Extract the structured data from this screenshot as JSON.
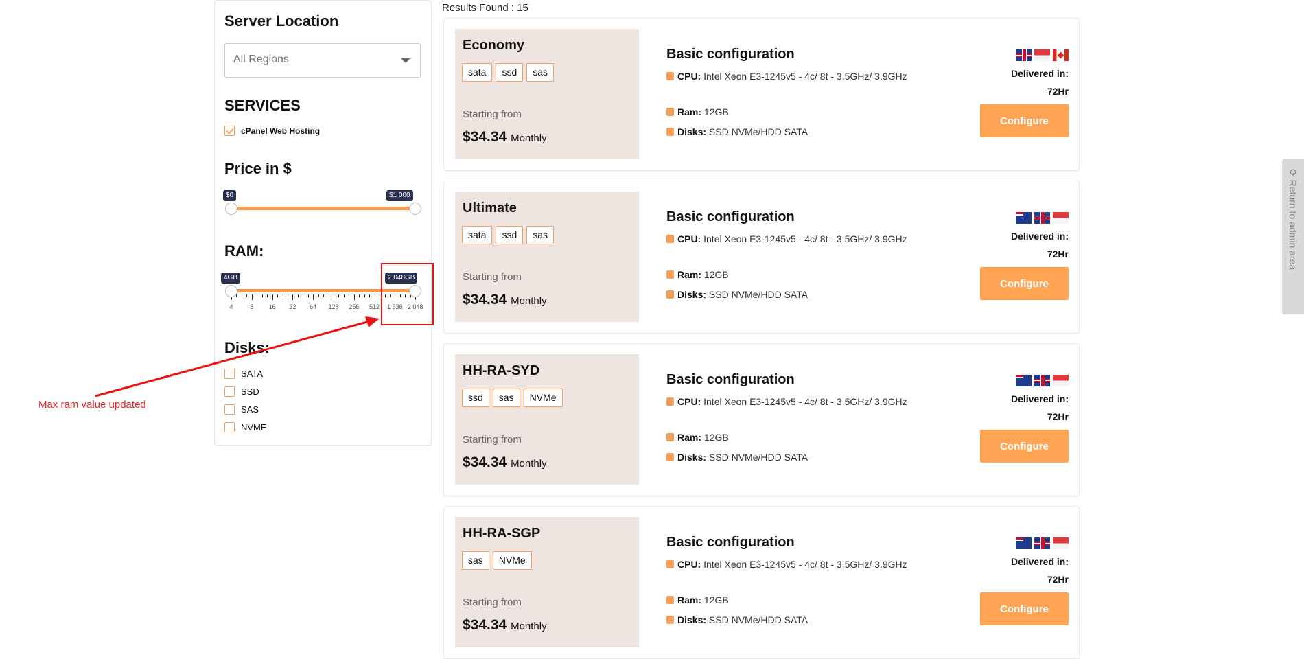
{
  "sidebar": {
    "location_title": "Server Location",
    "region_select": "All Regions",
    "services_title": "SERVICES",
    "services": [
      {
        "label": "cPanel Web Hosting",
        "checked": true
      }
    ],
    "price_title": "Price in $",
    "price_min": "$0",
    "price_max": "$1 000",
    "ram_title": "RAM:",
    "ram_min": "4GB",
    "ram_max": "2 048GB",
    "ram_ticks": [
      "4",
      "8",
      "16",
      "32",
      "64",
      "128",
      "256",
      "512",
      "1 536",
      "2 048"
    ],
    "disks_title": "Disks:",
    "disks": [
      {
        "label": "SATA",
        "checked": false
      },
      {
        "label": "SSD",
        "checked": false
      },
      {
        "label": "SAS",
        "checked": false
      },
      {
        "label": "NVME",
        "checked": false
      }
    ]
  },
  "results": "Results Found : 15",
  "cards": [
    {
      "name": "Economy",
      "tags": [
        "sata",
        "ssd",
        "sas"
      ],
      "flags": [
        "uk",
        "sg",
        "ca"
      ]
    },
    {
      "name": "Ultimate",
      "tags": [
        "sata",
        "ssd",
        "sas"
      ],
      "flags": [
        "au",
        "uk",
        "sg"
      ]
    },
    {
      "name": "HH-RA-SYD",
      "tags": [
        "ssd",
        "sas",
        "NVMe"
      ],
      "flags": [
        "au",
        "uk",
        "sg"
      ]
    },
    {
      "name": "HH-RA-SGP",
      "tags": [
        "sas",
        "NVMe"
      ],
      "flags": [
        "au",
        "uk",
        "sg"
      ]
    }
  ],
  "card_common": {
    "starting": "Starting from",
    "price": "$34.34",
    "period": "Monthly",
    "config_title": "Basic configuration",
    "cpu_label": "CPU:",
    "cpu": "Intel Xeon E3-1245v5 - 4c/ 8t - 3.5GHz/ 3.9GHz",
    "ram_label": "Ram:",
    "ram": "12GB",
    "disks_label": "Disks:",
    "disks": "SSD NVMe/HDD SATA",
    "delivered": "Delivered in:",
    "hours": "72Hr",
    "button": "Configure"
  },
  "admin_tab": "Return to admin area",
  "annotation": "Max ram value updated",
  "colors": {
    "accent": "#fea453",
    "badge": "#2a3050",
    "plan_bg": "#efe5e0",
    "annotation": "#ee2222"
  }
}
